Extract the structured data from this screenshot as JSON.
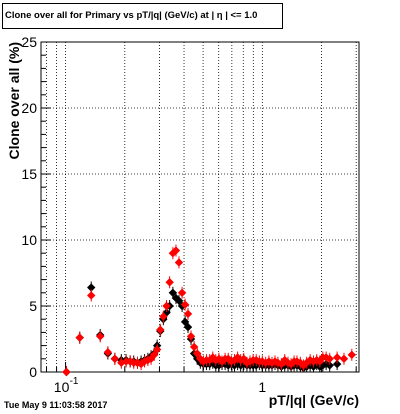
{
  "title": "Clone  over all for Primary vs pT/|q| (GeV/c) at |  η | <= 1.0",
  "footer": "Tue May  9 11:03:58 2017",
  "chart_data": {
    "type": "scatter",
    "xlabel": "pT/|q| (GeV/c)",
    "ylabel": "Clone  over all (%)",
    "xscale": "log",
    "xlim": [
      0.075,
      3.1
    ],
    "ylim": [
      0,
      25
    ],
    "grid": true,
    "xticklabels": [
      {
        "value": 0.1,
        "label": "10",
        "exp": "-1"
      },
      {
        "value": 1,
        "label": "1",
        "exp": ""
      }
    ],
    "yticklabels": [
      {
        "value": 0,
        "label": "0"
      },
      {
        "value": 5,
        "label": "5"
      },
      {
        "value": 10,
        "label": "10"
      },
      {
        "value": 15,
        "label": "15"
      },
      {
        "value": 20,
        "label": "20"
      },
      {
        "value": 25,
        "label": "25"
      }
    ],
    "series": [
      {
        "color": "#000000",
        "points": [
          [
            0.101,
            0.0
          ],
          [
            0.118,
            2.6
          ],
          [
            0.135,
            6.4
          ],
          [
            0.15,
            2.8
          ],
          [
            0.164,
            1.4
          ],
          [
            0.178,
            1.0
          ],
          [
            0.192,
            0.9
          ],
          [
            0.203,
            0.9
          ],
          [
            0.213,
            0.8
          ],
          [
            0.222,
            0.8
          ],
          [
            0.232,
            0.7
          ],
          [
            0.242,
            0.8
          ],
          [
            0.252,
            0.9
          ],
          [
            0.262,
            1.0
          ],
          [
            0.272,
            1.2
          ],
          [
            0.282,
            1.4
          ],
          [
            0.292,
            2.0
          ],
          [
            0.303,
            3.1
          ],
          [
            0.314,
            4.0
          ],
          [
            0.326,
            4.5
          ],
          [
            0.338,
            5.0
          ],
          [
            0.351,
            6.0
          ],
          [
            0.364,
            5.6
          ],
          [
            0.377,
            5.4
          ],
          [
            0.391,
            5.0
          ],
          [
            0.405,
            3.8
          ],
          [
            0.419,
            3.4
          ],
          [
            0.434,
            2.5
          ],
          [
            0.45,
            1.4
          ],
          [
            0.467,
            1.0
          ],
          [
            0.484,
            0.7
          ],
          [
            0.502,
            0.6
          ],
          [
            0.52,
            0.6
          ],
          [
            0.54,
            0.6
          ],
          [
            0.56,
            0.7
          ],
          [
            0.58,
            0.5
          ],
          [
            0.602,
            0.5
          ],
          [
            0.624,
            0.6
          ],
          [
            0.647,
            0.6
          ],
          [
            0.671,
            0.5
          ],
          [
            0.696,
            0.6
          ],
          [
            0.722,
            0.5
          ],
          [
            0.749,
            0.6
          ],
          [
            0.776,
            0.5
          ],
          [
            0.805,
            0.6
          ],
          [
            0.835,
            0.5
          ],
          [
            0.866,
            0.5
          ],
          [
            0.898,
            0.5
          ],
          [
            0.931,
            0.5
          ],
          [
            0.966,
            0.6
          ],
          [
            1.0,
            0.5
          ],
          [
            1.04,
            0.5
          ],
          [
            1.08,
            0.5
          ],
          [
            1.12,
            0.5
          ],
          [
            1.16,
            0.6
          ],
          [
            1.2,
            0.5
          ],
          [
            1.25,
            0.4
          ],
          [
            1.3,
            0.5
          ],
          [
            1.35,
            0.5
          ],
          [
            1.4,
            0.4
          ],
          [
            1.45,
            0.5
          ],
          [
            1.5,
            0.5
          ],
          [
            1.56,
            0.4
          ],
          [
            1.62,
            0.3
          ],
          [
            1.68,
            0.4
          ],
          [
            1.75,
            0.5
          ],
          [
            1.82,
            0.4
          ],
          [
            1.89,
            0.6
          ],
          [
            1.96,
            0.4
          ],
          [
            2.03,
            0.5
          ],
          [
            2.11,
            0.6
          ],
          [
            2.2,
            0.5
          ],
          [
            2.4,
            0.6
          ]
        ]
      },
      {
        "color": "#ff0000",
        "points": [
          [
            0.101,
            0.0
          ],
          [
            0.118,
            2.6
          ],
          [
            0.135,
            5.8
          ],
          [
            0.15,
            2.7
          ],
          [
            0.164,
            1.5
          ],
          [
            0.178,
            1.0
          ],
          [
            0.192,
            0.7
          ],
          [
            0.203,
            0.8
          ],
          [
            0.213,
            0.8
          ],
          [
            0.222,
            0.7
          ],
          [
            0.232,
            0.7
          ],
          [
            0.242,
            0.6
          ],
          [
            0.252,
            0.8
          ],
          [
            0.262,
            0.9
          ],
          [
            0.272,
            1.0
          ],
          [
            0.282,
            1.3
          ],
          [
            0.292,
            1.7
          ],
          [
            0.303,
            3.2
          ],
          [
            0.314,
            4.2
          ],
          [
            0.326,
            5.0
          ],
          [
            0.338,
            6.8
          ],
          [
            0.351,
            9.0
          ],
          [
            0.364,
            9.2
          ],
          [
            0.377,
            8.3
          ],
          [
            0.391,
            6.0
          ],
          [
            0.405,
            5.1
          ],
          [
            0.419,
            4.4
          ],
          [
            0.434,
            2.7
          ],
          [
            0.45,
            1.9
          ],
          [
            0.467,
            1.4
          ],
          [
            0.484,
            1.0
          ],
          [
            0.502,
            0.8
          ],
          [
            0.52,
            0.9
          ],
          [
            0.54,
            0.9
          ],
          [
            0.56,
            1.1
          ],
          [
            0.58,
            0.9
          ],
          [
            0.602,
            1.0
          ],
          [
            0.624,
            0.8
          ],
          [
            0.647,
            1.0
          ],
          [
            0.671,
            1.0
          ],
          [
            0.696,
            0.8
          ],
          [
            0.722,
            0.9
          ],
          [
            0.749,
            1.1
          ],
          [
            0.776,
            0.9
          ],
          [
            0.805,
            1.0
          ],
          [
            0.835,
            0.7
          ],
          [
            0.866,
            0.8
          ],
          [
            0.898,
            0.9
          ],
          [
            0.931,
            0.9
          ],
          [
            0.966,
            0.8
          ],
          [
            1.0,
            0.8
          ],
          [
            1.04,
            0.7
          ],
          [
            1.08,
            0.8
          ],
          [
            1.12,
            0.7
          ],
          [
            1.16,
            0.8
          ],
          [
            1.2,
            0.7
          ],
          [
            1.25,
            0.6
          ],
          [
            1.3,
            0.9
          ],
          [
            1.35,
            0.7
          ],
          [
            1.4,
            0.6
          ],
          [
            1.45,
            0.8
          ],
          [
            1.5,
            0.8
          ],
          [
            1.56,
            0.7
          ],
          [
            1.62,
            0.5
          ],
          [
            1.68,
            0.7
          ],
          [
            1.75,
            0.9
          ],
          [
            1.82,
            0.8
          ],
          [
            1.89,
            0.9
          ],
          [
            1.96,
            0.8
          ],
          [
            2.03,
            1.1
          ],
          [
            2.11,
            1.1
          ],
          [
            2.2,
            1.0
          ],
          [
            2.4,
            1.1
          ],
          [
            2.6,
            1.0
          ],
          [
            2.85,
            1.3
          ]
        ]
      }
    ]
  }
}
